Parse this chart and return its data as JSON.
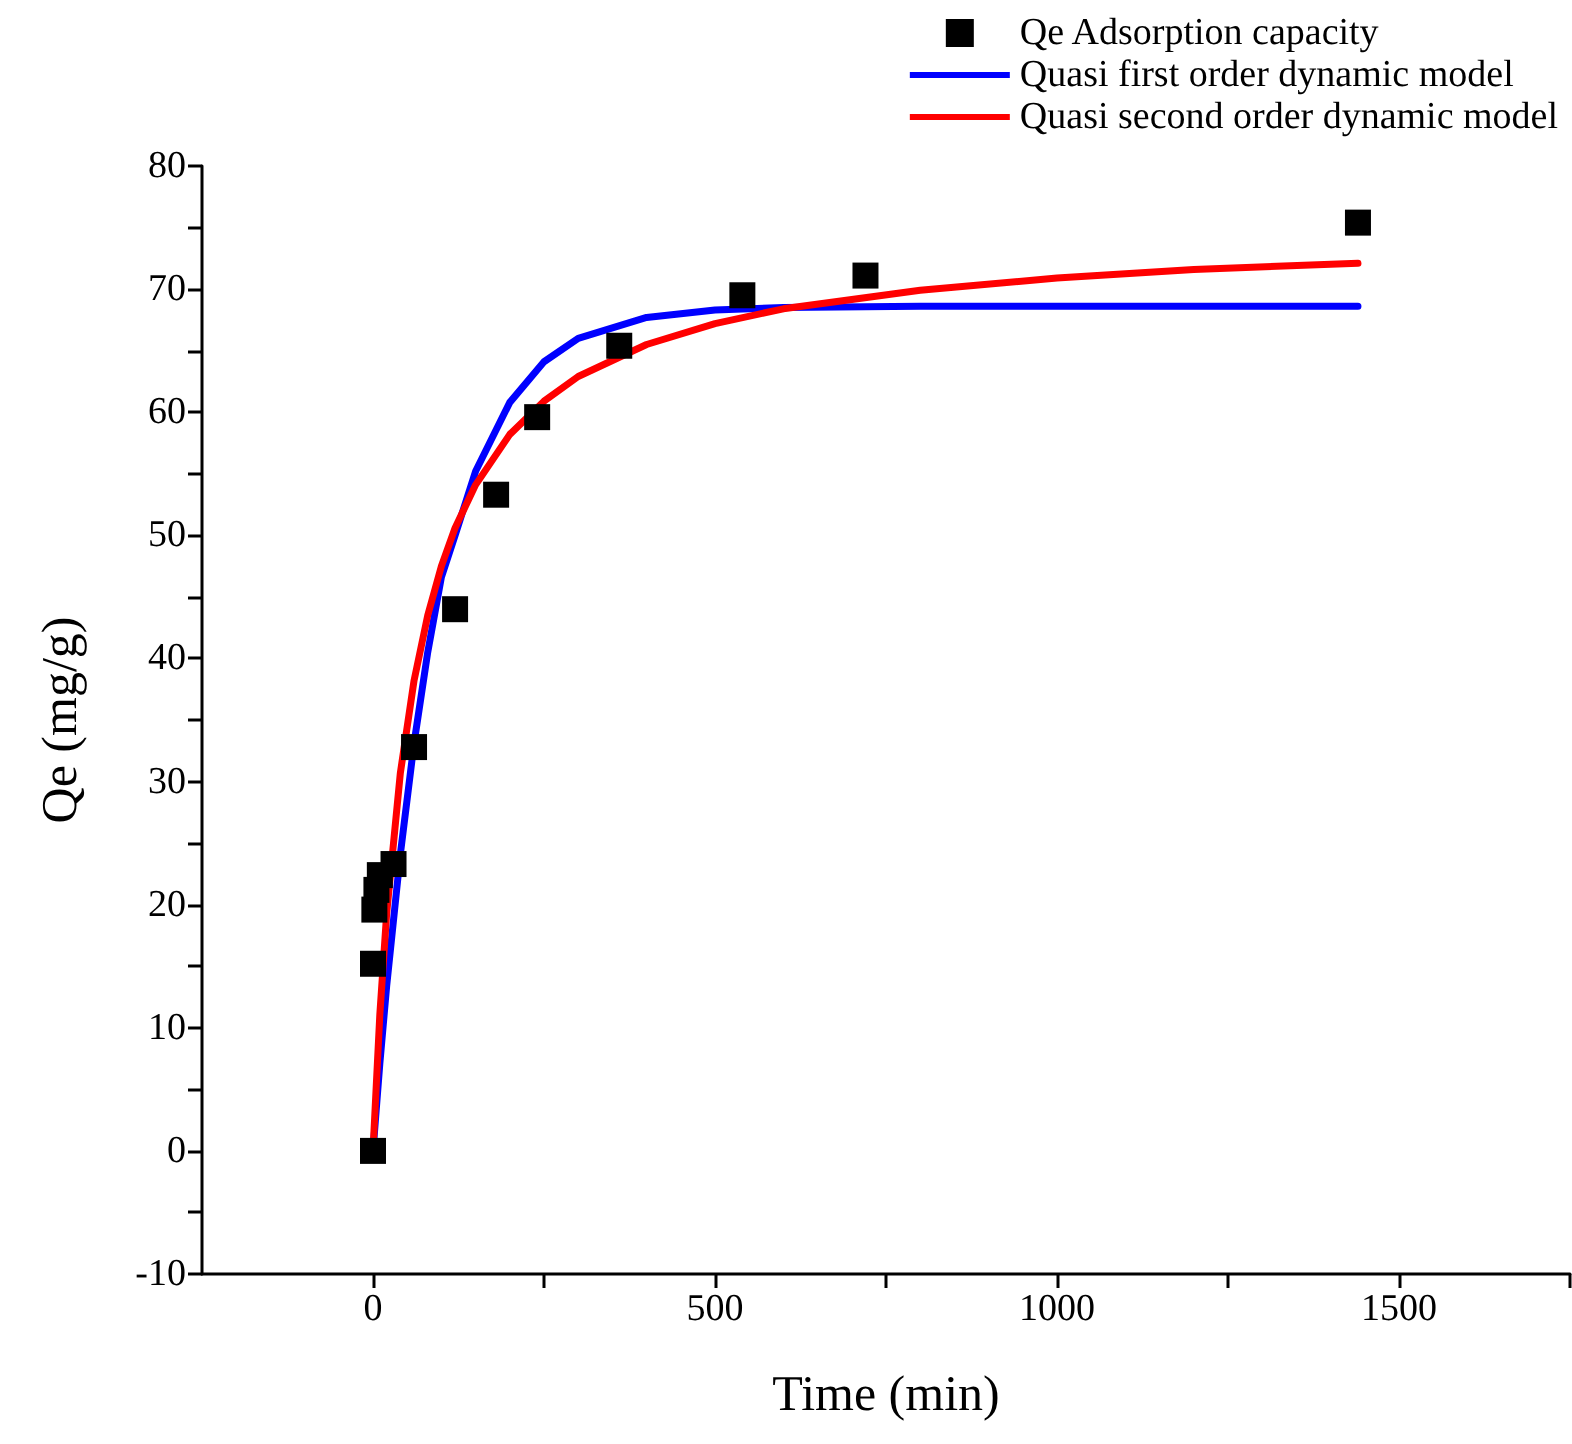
{
  "chart_data": {
    "type": "line",
    "xlabel": "Time (min)",
    "ylabel": "Qe (mg/g)",
    "xlim": [
      -250,
      1750
    ],
    "xticks": [
      0,
      {
        "value": 250,
        "label": null
      },
      500,
      {
        "value": 750,
        "label": null
      },
      1000,
      {
        "value": 1250,
        "label": null
      },
      1500,
      {
        "value": 1750,
        "label": null
      }
    ],
    "ylim": [
      -10,
      80
    ],
    "yticks": [
      -10,
      {
        "value": -5,
        "label": null
      },
      0,
      {
        "value": 5,
        "label": null
      },
      10,
      {
        "value": 15,
        "label": null
      },
      20,
      {
        "value": 25,
        "label": null
      },
      30,
      {
        "value": 35,
        "label": null
      },
      40,
      {
        "value": 45,
        "label": null
      },
      50,
      {
        "value": 55,
        "label": null
      },
      60,
      {
        "value": 65,
        "label": null
      },
      70,
      {
        "value": 75,
        "label": null
      },
      80
    ],
    "grid": false,
    "legend": "top right",
    "series": [
      {
        "name": "Qe Adsorption capacity",
        "type": "scatter",
        "marker": "square",
        "color": "#000000",
        "x": [
          0,
          0,
          2,
          5,
          10,
          30,
          60,
          120,
          180,
          240,
          360,
          540,
          720,
          1440
        ],
        "values": [
          0,
          15.2,
          19.6,
          21.2,
          22.4,
          23.3,
          32.8,
          44.0,
          53.3,
          59.6,
          65.4,
          69.5,
          71.1,
          75.4
        ]
      },
      {
        "name": "Quasi first order dynamic model",
        "marker": "none",
        "line_style": "solid",
        "color": "#0000ff",
        "x": [
          0,
          10,
          20,
          40,
          60,
          80,
          100,
          120,
          150,
          200,
          250,
          300,
          400,
          500,
          600,
          800,
          1000,
          1440
        ],
        "values": [
          0,
          7.1,
          13.4,
          24.1,
          33.1,
          40.5,
          46.6,
          50.0,
          55.2,
          60.8,
          64.1,
          66.0,
          67.7,
          68.3,
          68.5,
          68.6,
          68.6,
          68.6
        ]
      },
      {
        "name": "Quasi second order dynamic model",
        "marker": "none",
        "line_style": "solid",
        "color": "#ff0000",
        "x": [
          0,
          10,
          20,
          40,
          60,
          80,
          100,
          120,
          150,
          200,
          250,
          300,
          400,
          500,
          600,
          800,
          1000,
          1200,
          1440
        ],
        "values": [
          0,
          11.1,
          19.3,
          30.7,
          38.2,
          43.5,
          47.5,
          50.6,
          54.1,
          58.2,
          60.9,
          62.9,
          65.5,
          67.2,
          68.4,
          69.9,
          70.9,
          71.6,
          72.1
        ]
      }
    ]
  }
}
